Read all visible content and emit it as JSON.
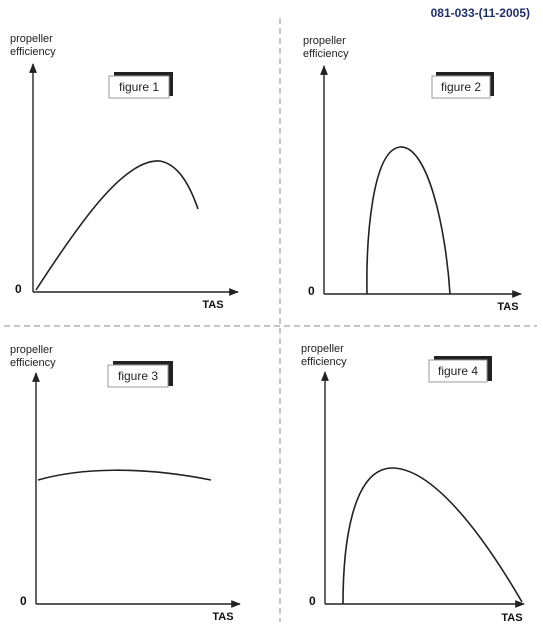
{
  "header": {
    "reference_code": "081-033-(11-2005)"
  },
  "colors": {
    "reference_code": "#1f2f6b",
    "line": "#222222",
    "divider": "#888888",
    "tab_shadow": "#222222"
  },
  "panels": [
    {
      "figure_label": "figure 1",
      "y_axis_label": [
        "propeller",
        "efficiency"
      ],
      "x_axis_label": "TAS",
      "origin_label": "0",
      "curve_shape": "rising to a maximum then falling"
    },
    {
      "figure_label": "figure 2",
      "y_axis_label": [
        "propeller",
        "efficiency"
      ],
      "x_axis_label": "TAS",
      "origin_label": "0",
      "curve_shape": "narrow arch"
    },
    {
      "figure_label": "figure 3",
      "y_axis_label": [
        "propeller",
        "efficiency"
      ],
      "x_axis_label": "TAS",
      "origin_label": "0",
      "curve_shape": "nearly flat"
    },
    {
      "figure_label": "figure 4",
      "y_axis_label": [
        "propeller",
        "efficiency"
      ],
      "x_axis_label": "TAS",
      "origin_label": "0",
      "curve_shape": "sharp rise then gradual fall"
    }
  ]
}
